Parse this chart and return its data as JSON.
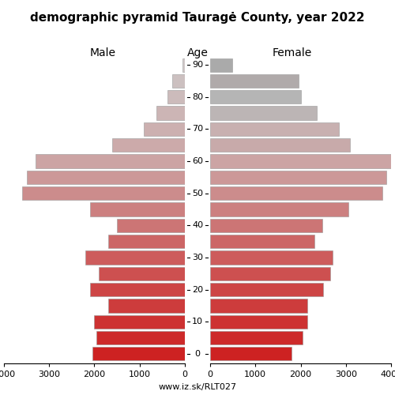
{
  "title": "demographic pyramid Tauragė County, year 2022",
  "age_groups": [
    0,
    5,
    10,
    15,
    20,
    25,
    30,
    35,
    40,
    45,
    50,
    55,
    60,
    65,
    70,
    75,
    80,
    85,
    90
  ],
  "male": [
    2050,
    1950,
    2000,
    1700,
    2100,
    1900,
    2200,
    1700,
    1500,
    2100,
    3600,
    3500,
    3300,
    1600,
    900,
    620,
    380,
    280,
    50
  ],
  "female": [
    1800,
    2050,
    2150,
    2150,
    2500,
    2650,
    2700,
    2300,
    2480,
    3050,
    3800,
    3900,
    4000,
    3100,
    2850,
    2350,
    2000,
    1950,
    480
  ],
  "male_colors": [
    "#cd2222",
    "#cd2a2a",
    "#cd3232",
    "#cd3c3c",
    "#cd4545",
    "#cd5050",
    "#cd5c5c",
    "#cc6666",
    "#cc7575",
    "#cc8080",
    "#cc8c8c",
    "#cc9898",
    "#cca4a4",
    "#ccaaaa",
    "#ccb0b0",
    "#ccb5b5",
    "#ccbbbb",
    "#ccc0c0",
    "#d0c8c8"
  ],
  "female_colors": [
    "#cd2222",
    "#cd2a2a",
    "#cd3232",
    "#cd3c3c",
    "#cd4545",
    "#cd5050",
    "#cd5c5c",
    "#cc6666",
    "#cc7575",
    "#cc8080",
    "#cc8c8c",
    "#cc9898",
    "#cca4a4",
    "#c8aaaa",
    "#c8b0b0",
    "#bcb5b5",
    "#b5b5b5",
    "#b0aaaa",
    "#aaaaaa"
  ],
  "xlim": 4000,
  "footer": "www.iz.sk/RLT027",
  "ytick_every": 2,
  "ytick_labels": [
    "0",
    "10",
    "20",
    "30",
    "40",
    "50",
    "60",
    "70",
    "80",
    "90"
  ]
}
